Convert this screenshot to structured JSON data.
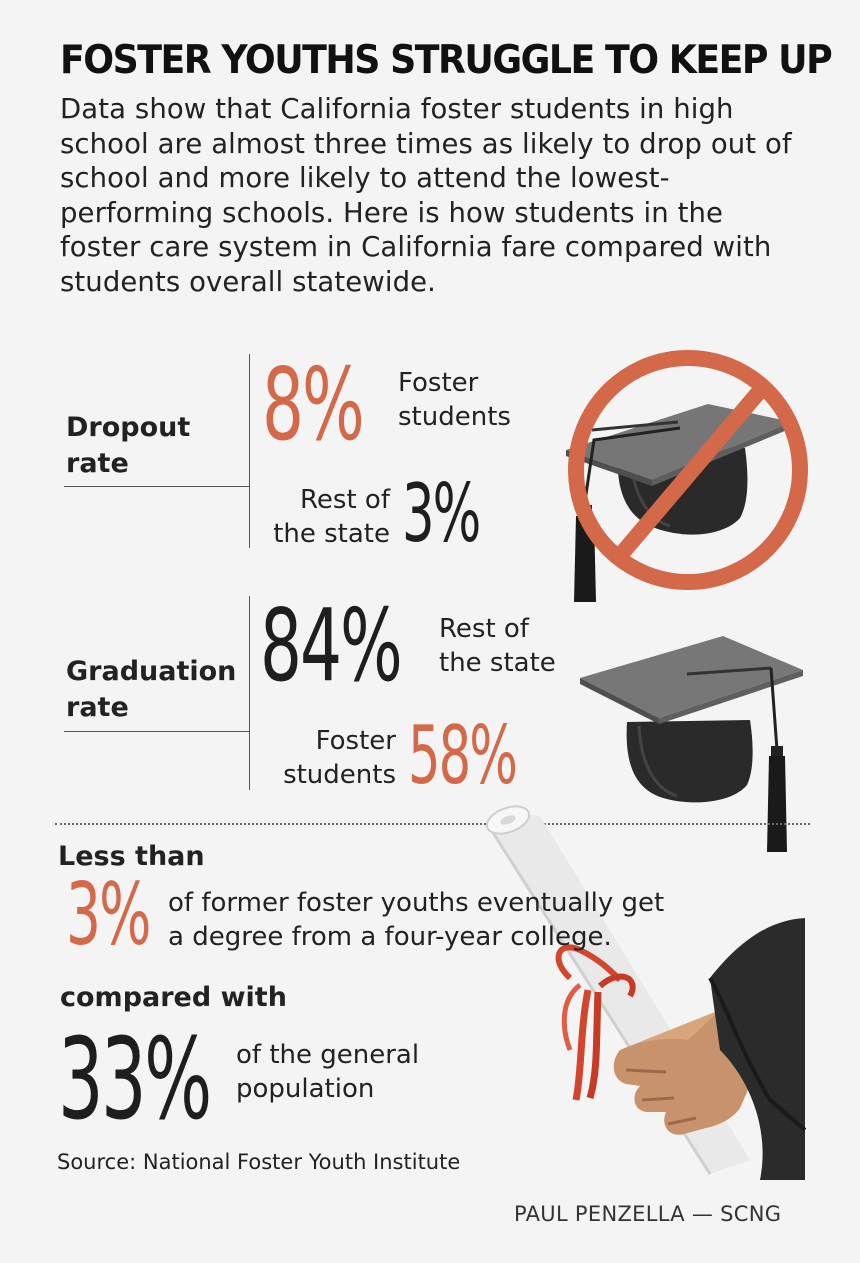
{
  "title": "FOSTER YOUTHS STRUGGLE TO KEEP UP",
  "dek": "Data show that California foster students in high school are almost three times as likely to drop out of school and more likely to attend the lowest-performing schools. Here is how students in the foster care system in California fare compared with students overall statewide.",
  "colors": {
    "accent": "#d4694a",
    "text": "#1e1e1e",
    "background": "#f4f4f4"
  },
  "chart_data": {
    "type": "table",
    "sections": [
      {
        "label": "Dropout rate",
        "rows": [
          {
            "value": "8%",
            "number": 8,
            "caption": "Foster students",
            "highlight": true
          },
          {
            "value": "3%",
            "number": 3,
            "caption": "Rest of the state",
            "highlight": false
          }
        ]
      },
      {
        "label": "Graduation rate",
        "rows": [
          {
            "value": "84%",
            "number": 84,
            "caption": "Rest of the state",
            "highlight": false
          },
          {
            "value": "58%",
            "number": 58,
            "caption": "Foster students",
            "highlight": true
          }
        ]
      }
    ],
    "college": {
      "lead": "Less than",
      "foster": {
        "value": "3%",
        "number": 3,
        "caption": "of former foster youths eventually get a degree from a four-year college."
      },
      "middle": "compared with",
      "general": {
        "value": "33%",
        "number": 33,
        "caption": "of the general population"
      }
    }
  },
  "dropout": {
    "label_line1": "Dropout",
    "label_line2": "rate",
    "foster_value": "8%",
    "foster_cap1": "Foster",
    "foster_cap2": "students",
    "state_value": "3%",
    "state_cap1": "Rest of",
    "state_cap2": "the state"
  },
  "graduation": {
    "label_line1": "Graduation",
    "label_line2": "rate",
    "state_value": "84%",
    "state_cap1": "Rest of",
    "state_cap2": "the state",
    "foster_value": "58%",
    "foster_cap1": "Foster",
    "foster_cap2": "students"
  },
  "college": {
    "lead": "Less than",
    "foster_value": "3%",
    "foster_cap1": "of former foster youths eventually get",
    "foster_cap2": "a degree from a four-year college.",
    "middle": "compared with",
    "general_value": "33%",
    "general_cap1": "of the general",
    "general_cap2": "population"
  },
  "icons": [
    "no-graduation-cap-icon",
    "graduation-cap-icon",
    "diploma-hand-icon"
  ],
  "source": "Source: National Foster Youth Institute",
  "credit": "PAUL PENZELLA — SCNG"
}
